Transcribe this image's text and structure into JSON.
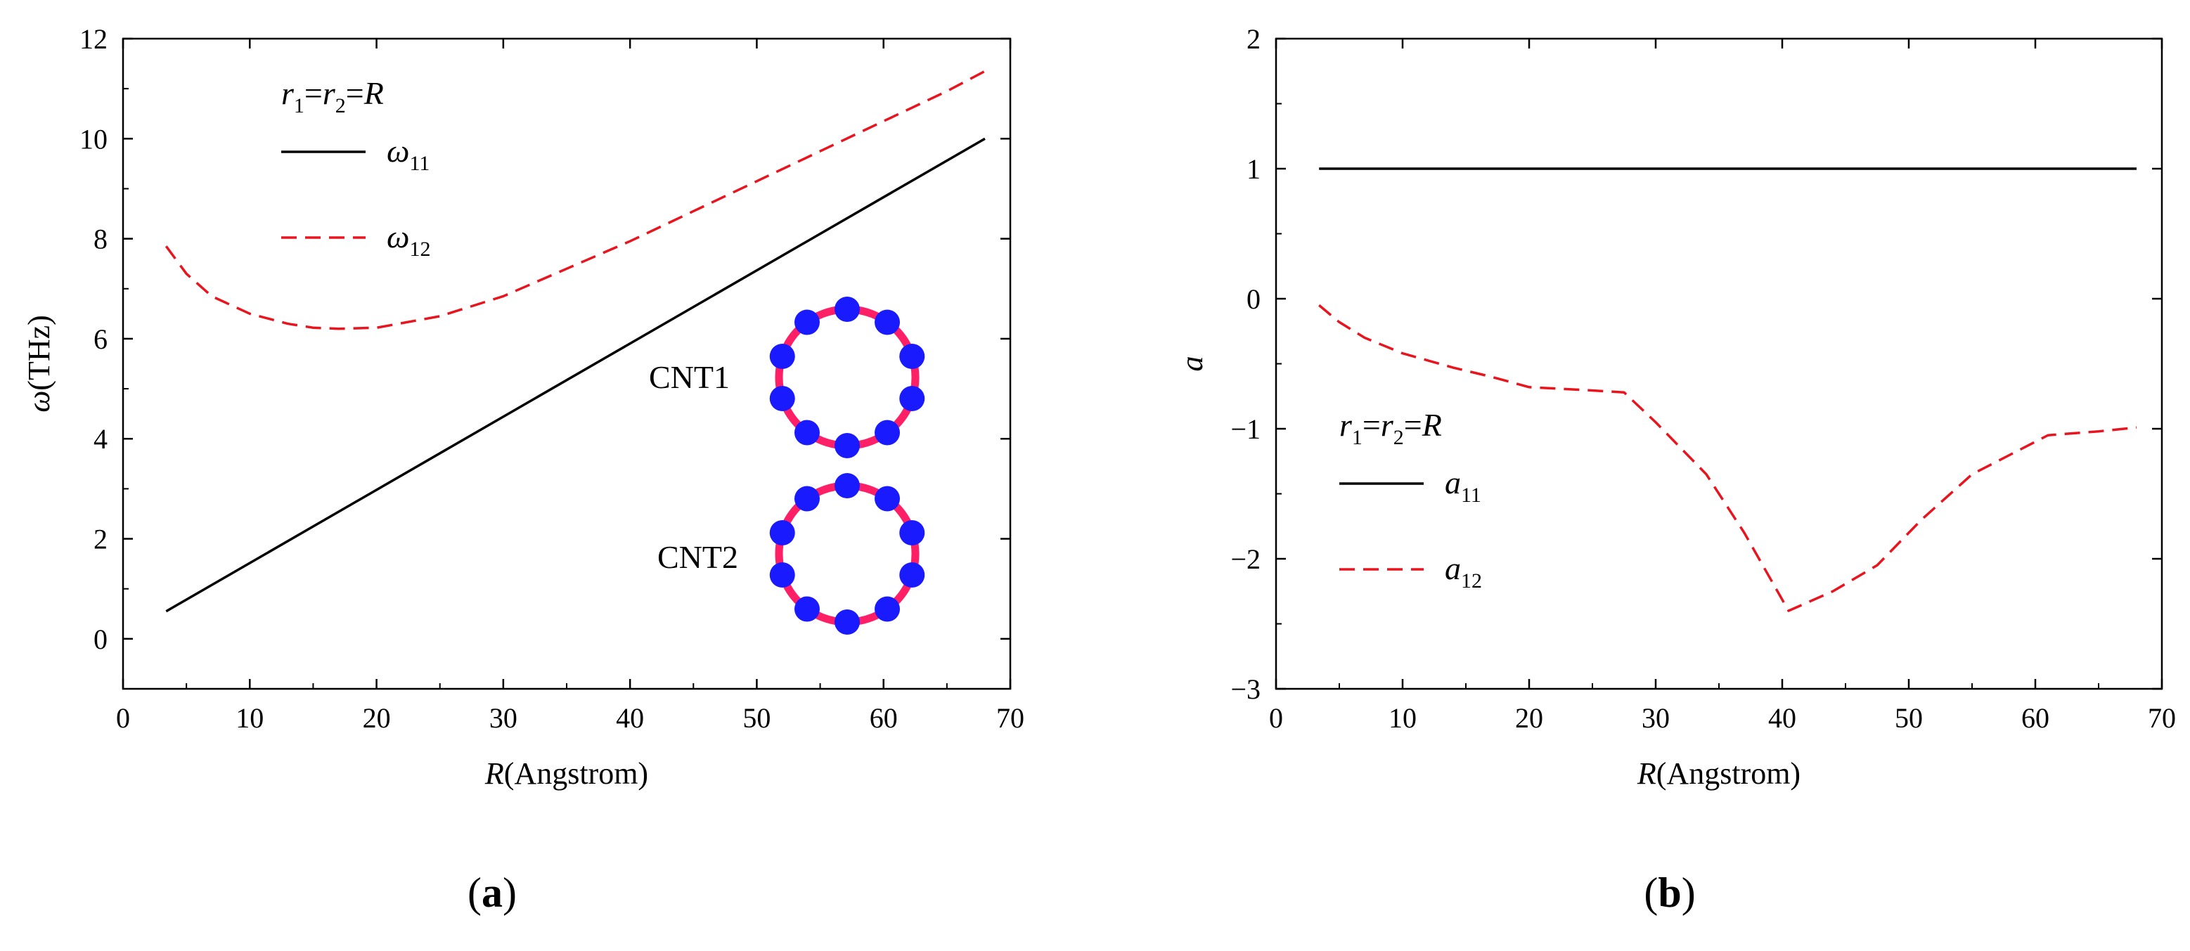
{
  "chart_data": [
    {
      "type": "line",
      "panel_label": "a",
      "xlabel": {
        "var": "R",
        "unit": "(Angstrom)"
      },
      "ylabel": {
        "var": "ω",
        "unit": "(THz)"
      },
      "xlim": [
        0,
        70
      ],
      "ylim": [
        -1,
        12
      ],
      "xticks": [
        "0",
        "10",
        "20",
        "30",
        "40",
        "50",
        "60",
        "70"
      ],
      "yticks": [
        "0",
        "2",
        "4",
        "6",
        "8",
        "10",
        "12"
      ],
      "legend_title": {
        "r1": "r",
        "s1": "1",
        "eq1": "=",
        "r2": "r",
        "s2": "2",
        "eq2": "=",
        "R": "R"
      },
      "inset_labels": {
        "cnt1": "CNT",
        "cnt1_sub": "1",
        "cnt2": "CNT",
        "cnt2_sub": "2"
      },
      "series": [
        {
          "name": "ω",
          "sub": "11",
          "style": "solid",
          "color": "#000000",
          "x": [
            3.4,
            68
          ],
          "y": [
            0.55,
            10.0
          ]
        },
        {
          "name": "ω",
          "sub": "12",
          "style": "dashed",
          "color": "#e8141e",
          "x": [
            3.4,
            5,
            7,
            10,
            13,
            15,
            17,
            20,
            25,
            30,
            35,
            40,
            45,
            50,
            55,
            60,
            65,
            68
          ],
          "y": [
            7.85,
            7.3,
            6.85,
            6.5,
            6.3,
            6.22,
            6.2,
            6.22,
            6.45,
            6.85,
            7.4,
            7.95,
            8.55,
            9.15,
            9.75,
            10.35,
            10.95,
            11.35
          ]
        }
      ]
    },
    {
      "type": "line",
      "panel_label": "b",
      "xlabel": {
        "var": "R",
        "unit": "(Angstrom)"
      },
      "ylabel": {
        "var": "a",
        "unit": ""
      },
      "xlim": [
        0,
        70
      ],
      "ylim": [
        -3,
        2
      ],
      "xticks": [
        "0",
        "10",
        "20",
        "30",
        "40",
        "50",
        "60",
        "70"
      ],
      "yticks": [
        "−3",
        "−2",
        "−1",
        "0",
        "1",
        "2"
      ],
      "legend_title": {
        "r1": "r",
        "s1": "1",
        "eq1": "=",
        "r2": "r",
        "s2": "2",
        "eq2": "=",
        "R": "R"
      },
      "series": [
        {
          "name": "a",
          "sub": "11",
          "style": "solid",
          "color": "#000000",
          "x": [
            3.4,
            68
          ],
          "y": [
            1.0,
            1.0
          ]
        },
        {
          "name": "a",
          "sub": "12",
          "style": "dashed",
          "color": "#e8141e",
          "x": [
            3.4,
            5,
            7,
            10,
            14,
            17,
            20,
            24,
            27.5,
            30,
            34,
            37,
            40.5,
            44,
            47.5,
            51,
            55,
            58,
            61,
            65,
            68
          ],
          "y": [
            -0.05,
            -0.18,
            -0.3,
            -0.42,
            -0.53,
            -0.6,
            -0.68,
            -0.7,
            -0.72,
            -0.95,
            -1.35,
            -1.8,
            -2.4,
            -2.25,
            -2.05,
            -1.7,
            -1.35,
            -1.2,
            -1.05,
            -1.02,
            -0.99
          ]
        }
      ]
    }
  ]
}
